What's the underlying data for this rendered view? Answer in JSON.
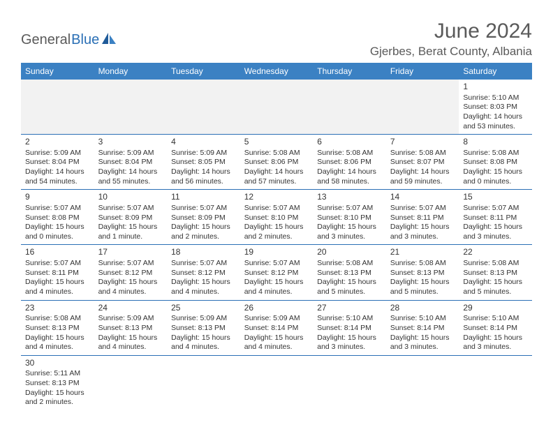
{
  "logo": {
    "part1": "General",
    "part2": "Blue",
    "color1": "#5a5a5a",
    "color2": "#2a6fb5"
  },
  "title": {
    "month": "June 2024",
    "location": "Gjerbes, Berat County, Albania"
  },
  "theme": {
    "header_bg": "#3b81c3",
    "header_text": "#ffffff",
    "border": "#2a6fb5",
    "empty_bg": "#f2f2f2"
  },
  "day_headers": [
    "Sunday",
    "Monday",
    "Tuesday",
    "Wednesday",
    "Thursday",
    "Friday",
    "Saturday"
  ],
  "cells": {
    "r0c6": {
      "num": "1",
      "sunrise": "Sunrise: 5:10 AM",
      "sunset": "Sunset: 8:03 PM",
      "daylight1": "Daylight: 14 hours",
      "daylight2": "and 53 minutes."
    },
    "r1c0": {
      "num": "2",
      "sunrise": "Sunrise: 5:09 AM",
      "sunset": "Sunset: 8:04 PM",
      "daylight1": "Daylight: 14 hours",
      "daylight2": "and 54 minutes."
    },
    "r1c1": {
      "num": "3",
      "sunrise": "Sunrise: 5:09 AM",
      "sunset": "Sunset: 8:04 PM",
      "daylight1": "Daylight: 14 hours",
      "daylight2": "and 55 minutes."
    },
    "r1c2": {
      "num": "4",
      "sunrise": "Sunrise: 5:09 AM",
      "sunset": "Sunset: 8:05 PM",
      "daylight1": "Daylight: 14 hours",
      "daylight2": "and 56 minutes."
    },
    "r1c3": {
      "num": "5",
      "sunrise": "Sunrise: 5:08 AM",
      "sunset": "Sunset: 8:06 PM",
      "daylight1": "Daylight: 14 hours",
      "daylight2": "and 57 minutes."
    },
    "r1c4": {
      "num": "6",
      "sunrise": "Sunrise: 5:08 AM",
      "sunset": "Sunset: 8:06 PM",
      "daylight1": "Daylight: 14 hours",
      "daylight2": "and 58 minutes."
    },
    "r1c5": {
      "num": "7",
      "sunrise": "Sunrise: 5:08 AM",
      "sunset": "Sunset: 8:07 PM",
      "daylight1": "Daylight: 14 hours",
      "daylight2": "and 59 minutes."
    },
    "r1c6": {
      "num": "8",
      "sunrise": "Sunrise: 5:08 AM",
      "sunset": "Sunset: 8:08 PM",
      "daylight1": "Daylight: 15 hours",
      "daylight2": "and 0 minutes."
    },
    "r2c0": {
      "num": "9",
      "sunrise": "Sunrise: 5:07 AM",
      "sunset": "Sunset: 8:08 PM",
      "daylight1": "Daylight: 15 hours",
      "daylight2": "and 0 minutes."
    },
    "r2c1": {
      "num": "10",
      "sunrise": "Sunrise: 5:07 AM",
      "sunset": "Sunset: 8:09 PM",
      "daylight1": "Daylight: 15 hours",
      "daylight2": "and 1 minute."
    },
    "r2c2": {
      "num": "11",
      "sunrise": "Sunrise: 5:07 AM",
      "sunset": "Sunset: 8:09 PM",
      "daylight1": "Daylight: 15 hours",
      "daylight2": "and 2 minutes."
    },
    "r2c3": {
      "num": "12",
      "sunrise": "Sunrise: 5:07 AM",
      "sunset": "Sunset: 8:10 PM",
      "daylight1": "Daylight: 15 hours",
      "daylight2": "and 2 minutes."
    },
    "r2c4": {
      "num": "13",
      "sunrise": "Sunrise: 5:07 AM",
      "sunset": "Sunset: 8:10 PM",
      "daylight1": "Daylight: 15 hours",
      "daylight2": "and 3 minutes."
    },
    "r2c5": {
      "num": "14",
      "sunrise": "Sunrise: 5:07 AM",
      "sunset": "Sunset: 8:11 PM",
      "daylight1": "Daylight: 15 hours",
      "daylight2": "and 3 minutes."
    },
    "r2c6": {
      "num": "15",
      "sunrise": "Sunrise: 5:07 AM",
      "sunset": "Sunset: 8:11 PM",
      "daylight1": "Daylight: 15 hours",
      "daylight2": "and 3 minutes."
    },
    "r3c0": {
      "num": "16",
      "sunrise": "Sunrise: 5:07 AM",
      "sunset": "Sunset: 8:11 PM",
      "daylight1": "Daylight: 15 hours",
      "daylight2": "and 4 minutes."
    },
    "r3c1": {
      "num": "17",
      "sunrise": "Sunrise: 5:07 AM",
      "sunset": "Sunset: 8:12 PM",
      "daylight1": "Daylight: 15 hours",
      "daylight2": "and 4 minutes."
    },
    "r3c2": {
      "num": "18",
      "sunrise": "Sunrise: 5:07 AM",
      "sunset": "Sunset: 8:12 PM",
      "daylight1": "Daylight: 15 hours",
      "daylight2": "and 4 minutes."
    },
    "r3c3": {
      "num": "19",
      "sunrise": "Sunrise: 5:07 AM",
      "sunset": "Sunset: 8:12 PM",
      "daylight1": "Daylight: 15 hours",
      "daylight2": "and 4 minutes."
    },
    "r3c4": {
      "num": "20",
      "sunrise": "Sunrise: 5:08 AM",
      "sunset": "Sunset: 8:13 PM",
      "daylight1": "Daylight: 15 hours",
      "daylight2": "and 5 minutes."
    },
    "r3c5": {
      "num": "21",
      "sunrise": "Sunrise: 5:08 AM",
      "sunset": "Sunset: 8:13 PM",
      "daylight1": "Daylight: 15 hours",
      "daylight2": "and 5 minutes."
    },
    "r3c6": {
      "num": "22",
      "sunrise": "Sunrise: 5:08 AM",
      "sunset": "Sunset: 8:13 PM",
      "daylight1": "Daylight: 15 hours",
      "daylight2": "and 5 minutes."
    },
    "r4c0": {
      "num": "23",
      "sunrise": "Sunrise: 5:08 AM",
      "sunset": "Sunset: 8:13 PM",
      "daylight1": "Daylight: 15 hours",
      "daylight2": "and 4 minutes."
    },
    "r4c1": {
      "num": "24",
      "sunrise": "Sunrise: 5:09 AM",
      "sunset": "Sunset: 8:13 PM",
      "daylight1": "Daylight: 15 hours",
      "daylight2": "and 4 minutes."
    },
    "r4c2": {
      "num": "25",
      "sunrise": "Sunrise: 5:09 AM",
      "sunset": "Sunset: 8:13 PM",
      "daylight1": "Daylight: 15 hours",
      "daylight2": "and 4 minutes."
    },
    "r4c3": {
      "num": "26",
      "sunrise": "Sunrise: 5:09 AM",
      "sunset": "Sunset: 8:14 PM",
      "daylight1": "Daylight: 15 hours",
      "daylight2": "and 4 minutes."
    },
    "r4c4": {
      "num": "27",
      "sunrise": "Sunrise: 5:10 AM",
      "sunset": "Sunset: 8:14 PM",
      "daylight1": "Daylight: 15 hours",
      "daylight2": "and 3 minutes."
    },
    "r4c5": {
      "num": "28",
      "sunrise": "Sunrise: 5:10 AM",
      "sunset": "Sunset: 8:14 PM",
      "daylight1": "Daylight: 15 hours",
      "daylight2": "and 3 minutes."
    },
    "r4c6": {
      "num": "29",
      "sunrise": "Sunrise: 5:10 AM",
      "sunset": "Sunset: 8:14 PM",
      "daylight1": "Daylight: 15 hours",
      "daylight2": "and 3 minutes."
    },
    "r5c0": {
      "num": "30",
      "sunrise": "Sunrise: 5:11 AM",
      "sunset": "Sunset: 8:13 PM",
      "daylight1": "Daylight: 15 hours",
      "daylight2": "and 2 minutes."
    }
  }
}
